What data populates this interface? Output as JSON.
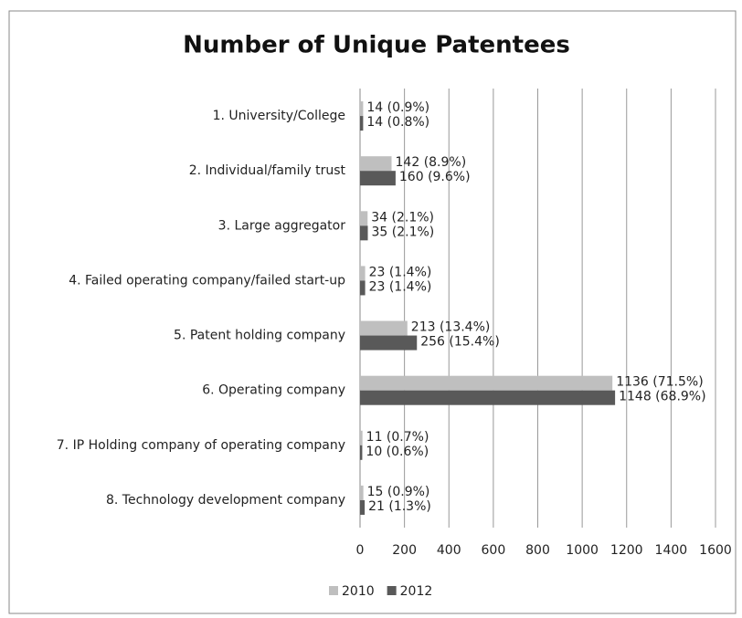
{
  "chart_data": {
    "type": "barh",
    "title": "Number of Unique Patentees",
    "categories": [
      "1. University/College",
      "2. Individual/family trust",
      "3. Large aggregator",
      "4. Failed operating company/failed start-up",
      "5. Patent holding company",
      "6. Operating company",
      "7. IP Holding company of operating company",
      "8. Technology development company"
    ],
    "series": [
      {
        "name": "2010",
        "color": "#bfbfbf",
        "values": [
          14,
          142,
          34,
          23,
          213,
          1136,
          11,
          15
        ],
        "value_labels": [
          "14 (0.9%)",
          "142 (8.9%)",
          "34 (2.1%)",
          "23 (1.4%)",
          "213 (13.4%)",
          "1136 (71.5%)",
          "11 (0.7%)",
          "15 (0.9%)"
        ]
      },
      {
        "name": "2012",
        "color": "#595959",
        "values": [
          14,
          160,
          35,
          23,
          256,
          1148,
          10,
          21
        ],
        "value_labels": [
          "14 (0.8%)",
          "160 (9.6%)",
          "35 (2.1%)",
          "23 (1.4%)",
          "256 (15.4%)",
          "1148 (68.9%)",
          "10 (0.6%)",
          "21 (1.3%)"
        ]
      }
    ],
    "xlim": [
      0,
      1600
    ],
    "xticks": [
      0,
      200,
      400,
      600,
      800,
      1000,
      1200,
      1400,
      1600
    ],
    "grid": true,
    "legend": "bottom"
  }
}
